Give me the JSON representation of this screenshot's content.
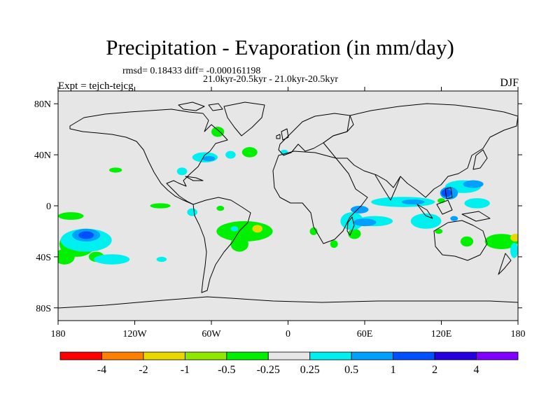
{
  "chart_data": {
    "type": "heatmap",
    "title": "Precipitation - Evaporation (in mm/day)",
    "stats_text": "rmsd= 0.18433  diff= -0.000161198",
    "period_text": "21.0kyr-20.5kyr - 21.0kyr-20.5kyr",
    "left_label": "Expt = tejch-tejcg",
    "right_label": "DJF",
    "units": "mm/day",
    "x_axis": {
      "min": -180,
      "max": 180,
      "ticks": [
        {
          "v": -180,
          "label": "180"
        },
        {
          "v": -120,
          "label": "120W"
        },
        {
          "v": -60,
          "label": "60W"
        },
        {
          "v": 0,
          "label": "0"
        },
        {
          "v": 60,
          "label": "60E"
        },
        {
          "v": 120,
          "label": "120E"
        },
        {
          "v": 180,
          "label": "180"
        }
      ]
    },
    "y_axis": {
      "min": -90,
      "max": 90,
      "ticks": [
        {
          "v": 80,
          "label": "80N"
        },
        {
          "v": 40,
          "label": "40N"
        },
        {
          "v": 0,
          "label": "0"
        },
        {
          "v": -40,
          "label": "40S"
        },
        {
          "v": -80,
          "label": "80S"
        }
      ]
    },
    "colorbar": {
      "levels": [
        "-4",
        "-2",
        "-1",
        "-0.5",
        "-0.25",
        "0.25",
        "0.5",
        "1",
        "2",
        "4"
      ],
      "colors": [
        "#ff0000",
        "#ff8000",
        "#e8d800",
        "#90e800",
        "#00f000",
        "#e6e6e6",
        "#00f0f0",
        "#00a0ff",
        "#0050ff",
        "#2800e0",
        "#8000ff"
      ]
    },
    "anomaly_regions": [
      {
        "bin": 4,
        "lon": -34,
        "lat": -20,
        "rlon": 22,
        "rlat": 8
      },
      {
        "bin": 4,
        "lon": -38,
        "lat": -30,
        "rlon": 7,
        "rlat": 6
      },
      {
        "bin": 4,
        "lon": -165,
        "lat": -30,
        "rlon": 14,
        "rlat": 10
      },
      {
        "bin": 4,
        "lon": -175,
        "lat": -40,
        "rlon": 8,
        "rlat": 6
      },
      {
        "bin": 4,
        "lon": -170,
        "lat": -8,
        "rlon": 10,
        "rlat": 3
      },
      {
        "bin": 4,
        "lon": -150,
        "lat": -40,
        "rlon": 6,
        "rlat": 4
      },
      {
        "bin": 4,
        "lon": -135,
        "lat": 28,
        "rlon": 5,
        "rlat": 2
      },
      {
        "bin": 4,
        "lon": -100,
        "lat": 0,
        "rlon": 8,
        "rlat": 2
      },
      {
        "bin": 4,
        "lon": -55,
        "lat": 58,
        "rlon": 5,
        "rlat": 4
      },
      {
        "bin": 4,
        "lon": -30,
        "lat": 42,
        "rlon": 6,
        "rlat": 4
      },
      {
        "bin": 4,
        "lon": -53,
        "lat": -2,
        "rlon": 3,
        "rlat": 2
      },
      {
        "bin": 4,
        "lon": 52,
        "lat": -22,
        "rlon": 5,
        "rlat": 4
      },
      {
        "bin": 4,
        "lon": 36,
        "lat": -30,
        "rlon": 3,
        "rlat": 3
      },
      {
        "bin": 4,
        "lon": 20,
        "lat": -20,
        "rlon": 3,
        "rlat": 3
      },
      {
        "bin": 4,
        "lon": 140,
        "lat": -28,
        "rlon": 5,
        "rlat": 4
      },
      {
        "bin": 4,
        "lon": 167,
        "lat": -28,
        "rlon": 13,
        "rlat": 6
      },
      {
        "bin": 4,
        "lon": 120,
        "lat": 4,
        "rlon": 3,
        "rlat": 2
      },
      {
        "bin": 4,
        "lon": 118,
        "lat": -20,
        "rlon": 3,
        "rlat": 2
      },
      {
        "bin": 2,
        "lon": 178,
        "lat": -25,
        "rlon": 4,
        "rlat": 3
      },
      {
        "bin": 2,
        "lon": -24,
        "lat": -18,
        "rlon": 4,
        "rlat": 3
      },
      {
        "bin": 6,
        "lon": -158,
        "lat": -27,
        "rlon": 20,
        "rlat": 9
      },
      {
        "bin": 6,
        "lon": -138,
        "lat": -42,
        "rlon": 14,
        "rlat": 4
      },
      {
        "bin": 6,
        "lon": -65,
        "lat": 38,
        "rlon": 10,
        "rlat": 4
      },
      {
        "bin": 6,
        "lon": -45,
        "lat": 40,
        "rlon": 4,
        "rlat": 3
      },
      {
        "bin": 6,
        "lon": -83,
        "lat": 27,
        "rlon": 4,
        "rlat": 3
      },
      {
        "bin": 6,
        "lon": -99,
        "lat": -42,
        "rlon": 4,
        "rlat": 2
      },
      {
        "bin": 6,
        "lon": -75,
        "lat": -5,
        "rlon": 4,
        "rlat": 3
      },
      {
        "bin": 6,
        "lon": -42,
        "lat": -18,
        "rlon": 3,
        "rlat": 2
      },
      {
        "bin": 6,
        "lon": -3,
        "lat": 42,
        "rlon": 3,
        "rlat": 2
      },
      {
        "bin": 6,
        "lon": 50,
        "lat": -12,
        "rlon": 9,
        "rlat": 7
      },
      {
        "bin": 6,
        "lon": 68,
        "lat": -12,
        "rlon": 14,
        "rlat": 4
      },
      {
        "bin": 6,
        "lon": 90,
        "lat": 3,
        "rlon": 25,
        "rlat": 4
      },
      {
        "bin": 6,
        "lon": 108,
        "lat": -12,
        "rlon": 12,
        "rlat": 6
      },
      {
        "bin": 6,
        "lon": 137,
        "lat": 15,
        "rlon": 14,
        "rlat": 5
      },
      {
        "bin": 6,
        "lon": 148,
        "lat": 2,
        "rlon": 10,
        "rlat": 4
      },
      {
        "bin": 6,
        "lon": 177,
        "lat": -35,
        "rlon": 3,
        "rlat": 6
      },
      {
        "bin": 7,
        "lon": -158,
        "lat": -23,
        "rlon": 11,
        "rlat": 5
      },
      {
        "bin": 7,
        "lon": -62,
        "lat": 37,
        "rlon": 5,
        "rlat": 2
      },
      {
        "bin": 7,
        "lon": 56,
        "lat": -3,
        "rlon": 7,
        "rlat": 3
      },
      {
        "bin": 7,
        "lon": 60,
        "lat": -13,
        "rlon": 9,
        "rlat": 3
      },
      {
        "bin": 7,
        "lon": 98,
        "lat": 3,
        "rlon": 9,
        "rlat": 2
      },
      {
        "bin": 7,
        "lon": 126,
        "lat": 10,
        "rlon": 7,
        "rlat": 5
      },
      {
        "bin": 7,
        "lon": 145,
        "lat": 17,
        "rlon": 8,
        "rlat": 3
      },
      {
        "bin": 7,
        "lon": 130,
        "lat": -10,
        "rlon": 3,
        "rlat": 2
      },
      {
        "bin": 8,
        "lon": -158,
        "lat": -23,
        "rlon": 6,
        "rlat": 3
      },
      {
        "bin": 8,
        "lon": 124,
        "lat": 10,
        "rlon": 4,
        "rlat": 3
      }
    ]
  }
}
